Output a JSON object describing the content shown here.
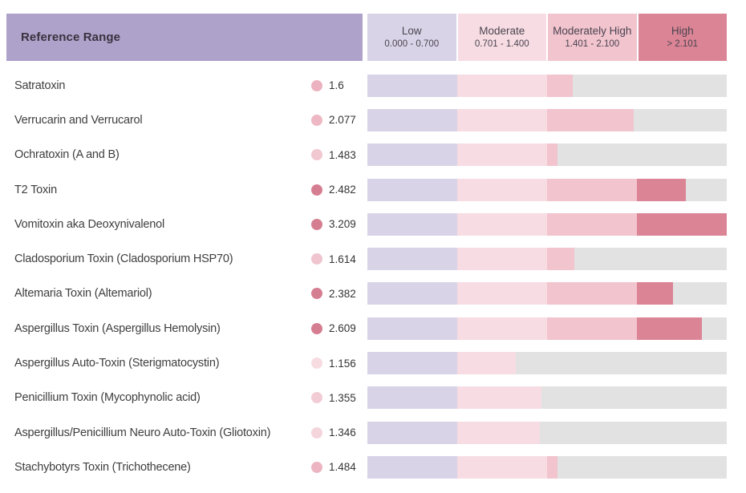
{
  "header": {
    "title": "Reference Range",
    "title_bg": "#aea1ca",
    "columns": [
      {
        "label": "Low",
        "range": "0.000 - 0.700",
        "bg": "#d9d3e7"
      },
      {
        "label": "Moderate",
        "range": "0.701 - 1.400",
        "bg": "#f7dde3"
      },
      {
        "label": "Moderately High",
        "range": "1.401 - 2.100",
        "bg": "#f1c4ce"
      },
      {
        "label": "High",
        "range": "> 2.101",
        "bg": "#da8495"
      }
    ]
  },
  "chart_data": {
    "type": "bar",
    "orientation": "horizontal",
    "title": "Reference Range",
    "xlim": [
      0,
      2.8
    ],
    "bands": [
      {
        "name": "Low",
        "range": [
          0.0,
          0.7
        ]
      },
      {
        "name": "Moderate",
        "range": [
          0.701,
          1.4
        ]
      },
      {
        "name": "Moderately High",
        "range": [
          1.401,
          2.1
        ]
      },
      {
        "name": "High",
        "range": "> 2.101"
      }
    ],
    "segment_bounds": [
      0,
      0.7,
      1.4,
      2.1,
      2.8
    ],
    "segment_names": [
      "low",
      "moderate",
      "moderately-high",
      "high"
    ],
    "segment_colors": [
      "#d9d3e7",
      "#f7dde3",
      "#f1c4ce",
      "#da8495"
    ],
    "track_color": "#e3e2e2",
    "rows": [
      {
        "label": "Satratoxin",
        "value": 1.6,
        "value_label": "1.6",
        "dot_color": "#ecb2bf"
      },
      {
        "label": "Verrucarin and Verrucarol",
        "value": 2.077,
        "value_label": "2.077",
        "dot_color": "#edb8c4"
      },
      {
        "label": "Ochratoxin (A and B)",
        "value": 1.483,
        "value_label": "1.483",
        "dot_color": "#f1c7d0"
      },
      {
        "label": "T2 Toxin",
        "value": 2.482,
        "value_label": "2.482",
        "dot_color": "#d67e91"
      },
      {
        "label": "Vomitoxin aka Deoxynivalenol",
        "value": 3.209,
        "value_label": "3.209",
        "dot_color": "#d67e91"
      },
      {
        "label": "Cladosporium Toxin (Cladosporium HSP70)",
        "value": 1.614,
        "value_label": "1.614",
        "dot_color": "#f0c5cf"
      },
      {
        "label": "Altemaria Toxin (Altemariol)",
        "value": 2.382,
        "value_label": "2.382",
        "dot_color": "#d67e91"
      },
      {
        "label": "Aspergillus Toxin (Aspergillus Hemolysin)",
        "value": 2.609,
        "value_label": "2.609",
        "dot_color": "#d67e91"
      },
      {
        "label": "Aspergillus Auto-Toxin (Sterigmatocystin)",
        "value": 1.156,
        "value_label": "1.156",
        "dot_color": "#f6dce1"
      },
      {
        "label": "Penicillium Toxin (Mycophynolic acid)",
        "value": 1.355,
        "value_label": "1.355",
        "dot_color": "#f2ccd4"
      },
      {
        "label": "Aspergillus/Penicillium Neuro Auto-Toxin (Gliotoxin)",
        "value": 1.346,
        "value_label": "1.346",
        "dot_color": "#f4d5db"
      },
      {
        "label": "Stachybotyrs Toxin (Trichothecene)",
        "value": 1.484,
        "value_label": "1.484",
        "dot_color": "#ecb5c1"
      }
    ]
  }
}
